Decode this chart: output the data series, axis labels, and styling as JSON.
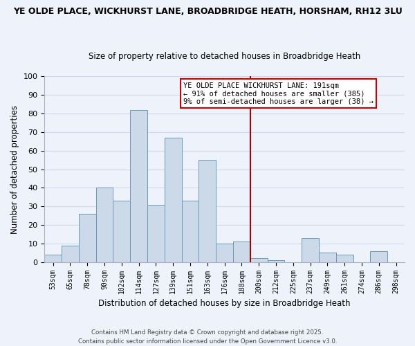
{
  "title_line1": "YE OLDE PLACE, WICKHURST LANE, BROADBRIDGE HEATH, HORSHAM, RH12 3LU",
  "title_line2": "Size of property relative to detached houses in Broadbridge Heath",
  "xlabel": "Distribution of detached houses by size in Broadbridge Heath",
  "ylabel": "Number of detached properties",
  "bar_labels": [
    "53sqm",
    "65sqm",
    "78sqm",
    "90sqm",
    "102sqm",
    "114sqm",
    "127sqm",
    "139sqm",
    "151sqm",
    "163sqm",
    "176sqm",
    "188sqm",
    "200sqm",
    "212sqm",
    "225sqm",
    "237sqm",
    "249sqm",
    "261sqm",
    "274sqm",
    "286sqm",
    "298sqm"
  ],
  "bar_values": [
    4,
    9,
    26,
    40,
    33,
    82,
    31,
    67,
    33,
    55,
    10,
    11,
    2,
    1,
    0,
    13,
    5,
    4,
    0,
    6,
    0
  ],
  "bar_color": "#ccd9e8",
  "bar_edge_color": "#6699bb",
  "grid_color": "#d0d8ec",
  "background_color": "#eef2fb",
  "vline_x": 11.5,
  "vline_color": "#aa0000",
  "annotation_text": "YE OLDE PLACE WICKHURST LANE: 191sqm\n← 91% of detached houses are smaller (385)\n9% of semi-detached houses are larger (38) →",
  "annotation_box_edge": "#cc0000",
  "ylim": [
    0,
    100
  ],
  "yticks": [
    0,
    10,
    20,
    30,
    40,
    50,
    60,
    70,
    80,
    90,
    100
  ],
  "footer_line1": "Contains HM Land Registry data © Crown copyright and database right 2025.",
  "footer_line2": "Contains public sector information licensed under the Open Government Licence v3.0."
}
